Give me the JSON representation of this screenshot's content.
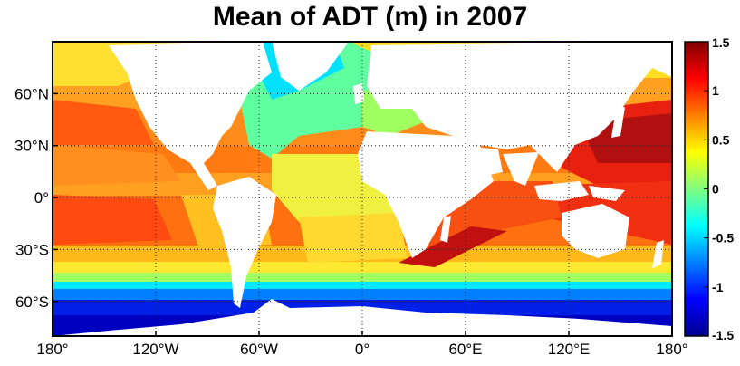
{
  "title": "Mean of ADT (m) in 2007",
  "map": {
    "lon_range": [
      -180,
      180
    ],
    "lat_range": [
      -80,
      90
    ],
    "lon_ticks": [
      {
        "value": -180,
        "label": "180°"
      },
      {
        "value": -120,
        "label": "120°W"
      },
      {
        "value": -60,
        "label": "60°W"
      },
      {
        "value": 0,
        "label": "0°"
      },
      {
        "value": 60,
        "label": "60°E"
      },
      {
        "value": 120,
        "label": "120°E"
      },
      {
        "value": 180,
        "label": "180°"
      }
    ],
    "lat_ticks": [
      {
        "value": 60,
        "label": "60°N"
      },
      {
        "value": 30,
        "label": "30°N"
      },
      {
        "value": 0,
        "label": "0°"
      },
      {
        "value": -30,
        "label": "30°S"
      },
      {
        "value": -60,
        "label": "60°S"
      }
    ],
    "grid": true,
    "grid_style": "dotted",
    "land_color": "#ffffff"
  },
  "colorbar": {
    "min": -1.5,
    "max": 1.5,
    "colormap": "jet",
    "ticks": [
      {
        "value": 1.5,
        "label": "1.5"
      },
      {
        "value": 1,
        "label": "1"
      },
      {
        "value": 0.5,
        "label": "0.5"
      },
      {
        "value": 0,
        "label": "0"
      },
      {
        "value": -0.5,
        "label": "-0.5"
      },
      {
        "value": -1,
        "label": "-1"
      },
      {
        "value": -1.5,
        "label": "-1.5"
      }
    ],
    "stops": [
      {
        "value": -1.5,
        "color": "#00008f"
      },
      {
        "value": -1.125,
        "color": "#0000ff"
      },
      {
        "value": -0.375,
        "color": "#00ffff"
      },
      {
        "value": 0.375,
        "color": "#ffff00"
      },
      {
        "value": 1.125,
        "color": "#ff0000"
      },
      {
        "value": 1.5,
        "color": "#800000"
      }
    ]
  }
}
